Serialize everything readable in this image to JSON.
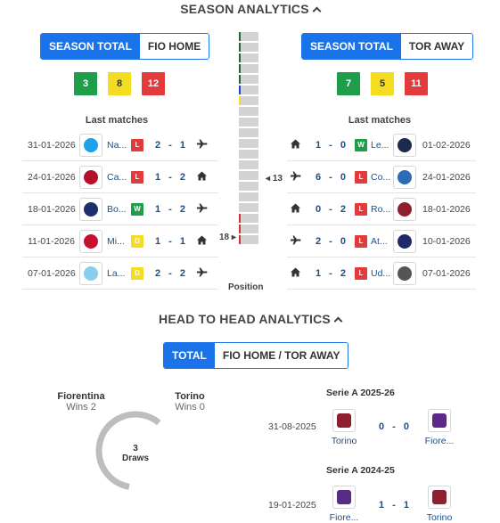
{
  "season": {
    "title": "SEASON ANALYTICS",
    "left": {
      "tabs": [
        {
          "label": "SEASON TOTAL",
          "active": true
        },
        {
          "label": "FIO HOME",
          "active": false
        }
      ],
      "stats": {
        "wins": "3",
        "draws": "8",
        "losses": "12"
      },
      "last_label": "Last matches",
      "matches": [
        {
          "date": "31-01-2026",
          "team": "Na...",
          "result": "L",
          "score": "2 - 1",
          "venue": "away",
          "logo": "#1aa3e8"
        },
        {
          "date": "24-01-2026",
          "team": "Ca...",
          "result": "L",
          "score": "1 - 2",
          "venue": "home",
          "logo": "#b3122d"
        },
        {
          "date": "18-01-2026",
          "team": "Bo...",
          "result": "W",
          "score": "1 - 2",
          "venue": "away",
          "logo": "#1b2f6b"
        },
        {
          "date": "11-01-2026",
          "team": "Mi...",
          "result": "D",
          "score": "1 - 1",
          "venue": "home",
          "logo": "#c8102e"
        },
        {
          "date": "07-01-2026",
          "team": "La...",
          "result": "D",
          "score": "2 - 2",
          "venue": "away",
          "logo": "#87ceeb"
        }
      ]
    },
    "right": {
      "tabs": [
        {
          "label": "SEASON TOTAL",
          "active": true
        },
        {
          "label": "TOR AWAY",
          "active": false
        }
      ],
      "stats": {
        "wins": "7",
        "draws": "5",
        "losses": "11"
      },
      "last_label": "Last matches",
      "matches": [
        {
          "date": "01-02-2026",
          "team": "Le...",
          "result": "W",
          "score": "1 - 0",
          "venue": "home",
          "logo": "#1d2a4d"
        },
        {
          "date": "24-01-2026",
          "team": "Co...",
          "result": "L",
          "score": "6 - 0",
          "venue": "away",
          "logo": "#2a6cb5"
        },
        {
          "date": "18-01-2026",
          "team": "Ro...",
          "result": "L",
          "score": "0 - 2",
          "venue": "home",
          "logo": "#8e1f2f"
        },
        {
          "date": "10-01-2026",
          "team": "At...",
          "result": "L",
          "score": "2 - 0",
          "venue": "away",
          "logo": "#1e2b6b"
        },
        {
          "date": "07-01-2026",
          "team": "Ud...",
          "result": "L",
          "score": "1 - 2",
          "venue": "home",
          "logo": "#555555"
        }
      ]
    },
    "position": {
      "label": "Position",
      "left_pos": "18",
      "right_pos": "13",
      "total": 20,
      "marks": [
        {
          "index": 0,
          "color": "#1e6b2e"
        },
        {
          "index": 1,
          "color": "#1e6b2e"
        },
        {
          "index": 2,
          "color": "#1e6b2e"
        },
        {
          "index": 3,
          "color": "#1e6b2e"
        },
        {
          "index": 4,
          "color": "#1e6b2e"
        },
        {
          "index": 5,
          "color": "#1a3fd1"
        },
        {
          "index": 6,
          "color": "#f4dd21"
        },
        {
          "index": 17,
          "color": "#d32f2f"
        },
        {
          "index": 18,
          "color": "#d32f2f"
        },
        {
          "index": 19,
          "color": "#d32f2f"
        }
      ]
    }
  },
  "h2h": {
    "title": "HEAD TO HEAD ANALYTICS",
    "tabs": [
      {
        "label": "TOTAL",
        "active": true
      },
      {
        "label": "FIO HOME / TOR AWAY",
        "active": false
      }
    ],
    "home": {
      "name": "Fiorentina",
      "wins": "Wins 2"
    },
    "away": {
      "name": "Torino",
      "wins": "Wins 0"
    },
    "draws_count": "3",
    "draws_label": "Draws",
    "competitions": [
      {
        "title": "Serie A 2025-26",
        "date": "31-08-2025",
        "home": "Torino",
        "score": "0 - 0",
        "away": "Fiore...",
        "home_logo": "#8e1f2f",
        "away_logo": "#5b2a86"
      },
      {
        "title": "Serie A 2024-25",
        "date": "19-01-2025",
        "home": "Fiore...",
        "score": "1 - 1",
        "away": "Torino",
        "home_logo": "#5b2a86",
        "away_logo": "#8e1f2f"
      }
    ]
  },
  "colors": {
    "accent": "#1a73e8",
    "win": "#1e9e48",
    "draw": "#f4dd21",
    "loss": "#e33b3b",
    "donut": "#bdbdbd"
  },
  "icons": {
    "away": "airplane-icon",
    "home": "house-icon",
    "collapse": "chevron-up-icon"
  }
}
